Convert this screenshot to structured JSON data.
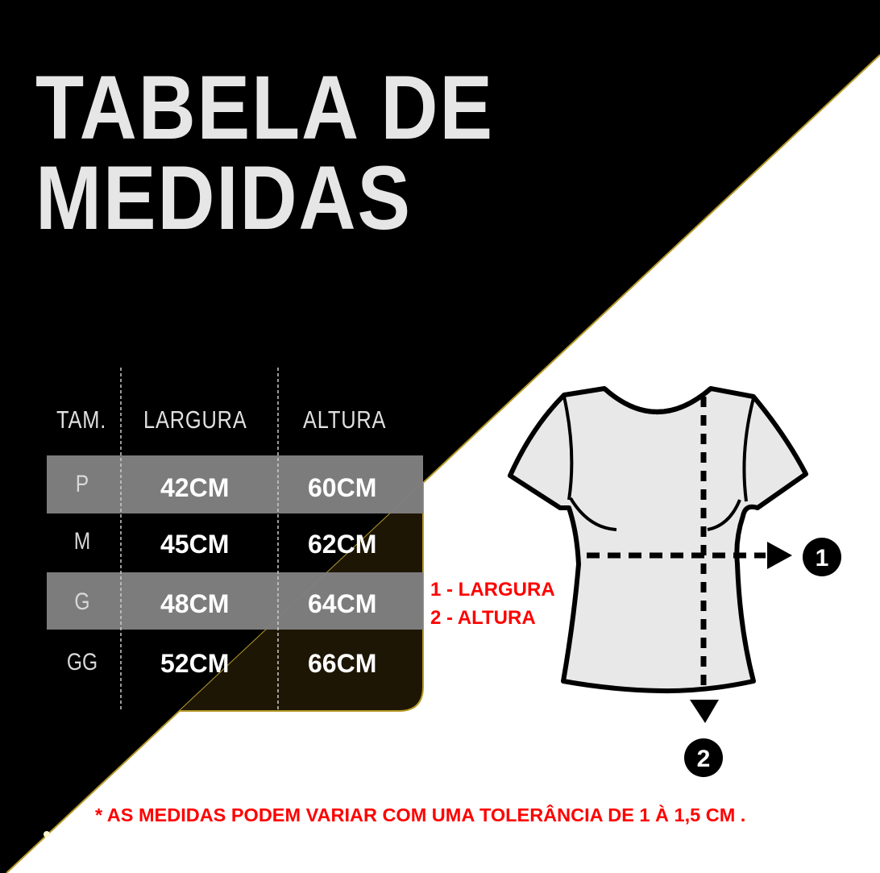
{
  "title": {
    "line1": "TABELA DE",
    "line2": "MEDIDAS"
  },
  "table": {
    "headers": [
      "TAM.",
      "LARGURA",
      "ALTURA"
    ],
    "rows": [
      {
        "size": "P",
        "largura": "42CM",
        "altura": "60CM"
      },
      {
        "size": "M",
        "largura": "45CM",
        "altura": "62CM"
      },
      {
        "size": "G",
        "largura": "48CM",
        "altura": "64CM"
      },
      {
        "size": "GG",
        "largura": "52CM",
        "altura": "66CM"
      }
    ]
  },
  "legend": {
    "item1": "1 - LARGURA",
    "item2": "2 - ALTURA"
  },
  "diagram": {
    "marker1": "1",
    "marker2": "2"
  },
  "note": "* AS MEDIDAS PODEM VARIAR COM UMA TOLERÂNCIA DE 1 À 1,5 CM .",
  "colors": {
    "background_dark": "#000000",
    "background_light": "#ffffff",
    "title": "#e6e6e6",
    "row_highlight": "#808080",
    "accent_red": "#ff0000",
    "shirt": "#e8e8e8"
  }
}
